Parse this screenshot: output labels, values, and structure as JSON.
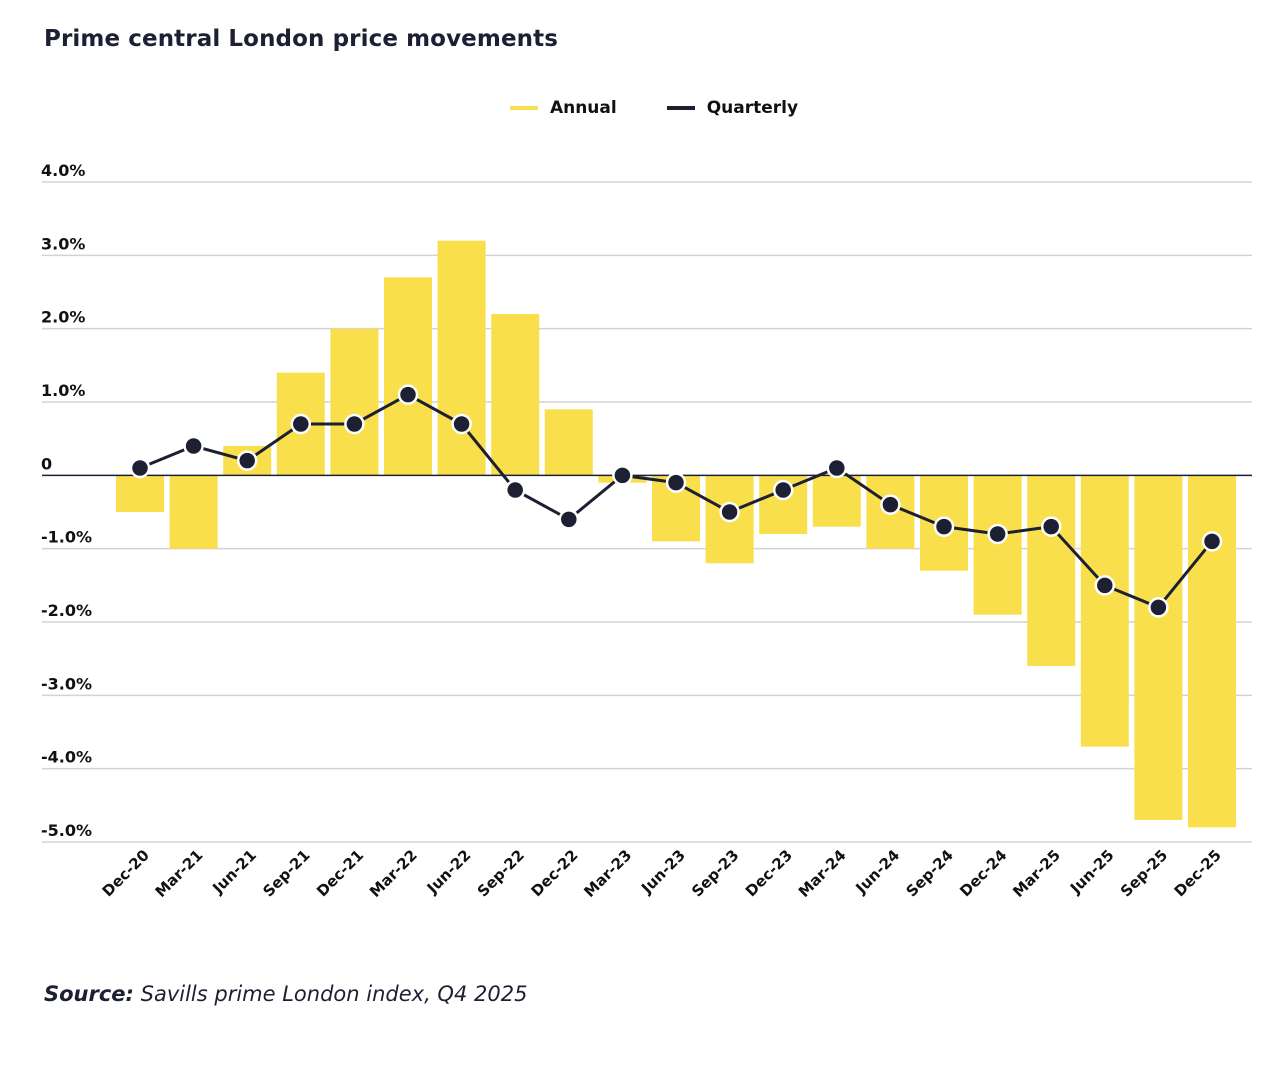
{
  "chart_data": {
    "type": "bar",
    "title": "Prime central London price movements",
    "xlabel": "",
    "ylabel": "",
    "ylim": [
      -5.0,
      4.0
    ],
    "y_ticks": [
      4.0,
      3.0,
      2.0,
      1.0,
      0,
      -1.0,
      -2.0,
      -3.0,
      -4.0,
      -5.0
    ],
    "y_tick_labels": [
      "4.0%",
      "3.0%",
      "2.0%",
      "1.0%",
      "0",
      "-1.0%",
      "-2.0%",
      "-3.0%",
      "-4.0%",
      "-5.0%"
    ],
    "grid": true,
    "legend_position": "top-center",
    "categories": [
      "Dec-20",
      "Mar-21",
      "Jun-21",
      "Sep-21",
      "Dec-21",
      "Mar-22",
      "Jun-22",
      "Sep-22",
      "Dec-22",
      "Mar-23",
      "Jun-23",
      "Sep-23",
      "Dec-23",
      "Mar-24",
      "Jun-24",
      "Sep-24",
      "Dec-24",
      "Mar-25",
      "Jun-25",
      "Sep-25",
      "Dec-25"
    ],
    "series": [
      {
        "name": "Annual",
        "type": "bar",
        "color": "#f8df4b",
        "values": [
          -0.5,
          -1.0,
          0.4,
          1.4,
          2.0,
          2.7,
          3.2,
          2.2,
          0.9,
          -0.1,
          -0.9,
          -1.2,
          -0.8,
          -0.7,
          -1.0,
          -1.3,
          -1.9,
          -2.6,
          -3.7,
          -4.7,
          -4.8
        ]
      },
      {
        "name": "Quarterly",
        "type": "line",
        "color": "#1d1f33",
        "values": [
          0.1,
          0.4,
          0.2,
          0.7,
          0.7,
          1.1,
          0.7,
          -0.2,
          -0.6,
          0.0,
          -0.1,
          -0.5,
          -0.2,
          0.1,
          -0.4,
          -0.7,
          -0.8,
          -0.7,
          -1.5,
          -1.8,
          -0.9
        ]
      }
    ]
  },
  "legend": {
    "annual_label": "Annual",
    "quarterly_label": "Quarterly"
  },
  "source": {
    "label": "Source:",
    "text": "Savills prime London index, Q4 2025"
  }
}
